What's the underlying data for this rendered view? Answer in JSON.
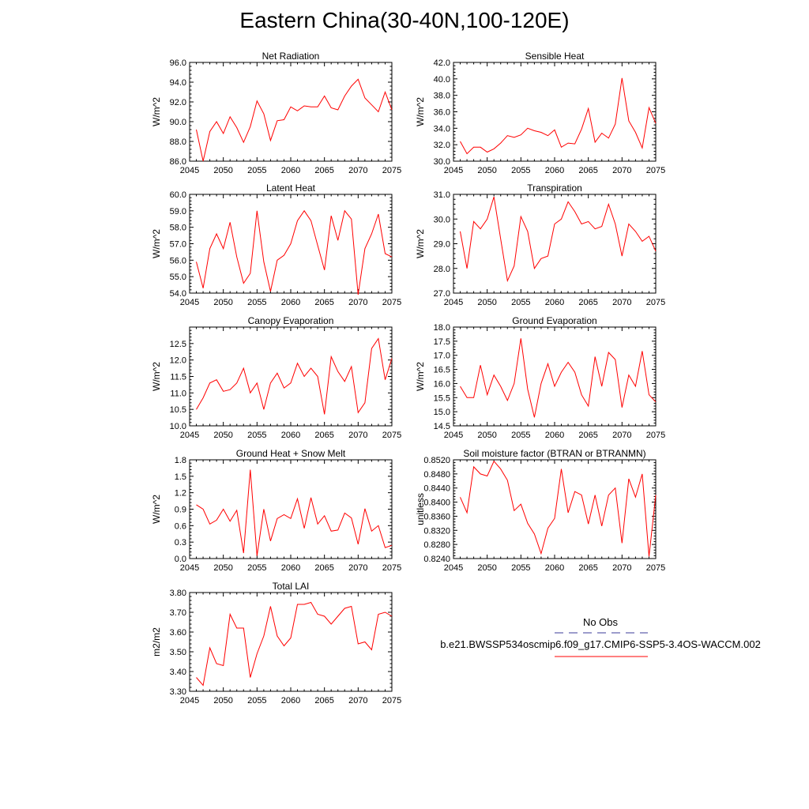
{
  "title": "Eastern China(30-40N,100-120E)",
  "legend": {
    "entries": [
      {
        "name": "No Obs",
        "color": "#3b3b9a",
        "dash": "dashed"
      },
      {
        "name": "b.e21.BWSSP534oscmip6.f09_g17.CMIP6-SSP5-3.4OS-WACCM.002",
        "color": "#ff0000",
        "dash": "solid"
      }
    ]
  },
  "chart_data": [
    {
      "type": "line",
      "title": "Net Radiation",
      "xlabel": "",
      "ylabel": "W/m^2",
      "xlim": [
        2045,
        2075
      ],
      "ylim": [
        86.0,
        96.0
      ],
      "xticks": [
        2045,
        2050,
        2055,
        2060,
        2065,
        2070,
        2075
      ],
      "yticks": [
        86.0,
        88.0,
        90.0,
        92.0,
        94.0,
        96.0
      ],
      "ytick_labels": [
        "86.0",
        "88.0",
        "90.0",
        "92.0",
        "94.0",
        "96.0"
      ],
      "x": [
        2046,
        2047,
        2048,
        2049,
        2050,
        2051,
        2052,
        2053,
        2054,
        2055,
        2056,
        2057,
        2058,
        2059,
        2060,
        2061,
        2062,
        2063,
        2064,
        2065,
        2066,
        2067,
        2068,
        2069,
        2070,
        2071,
        2072,
        2073,
        2074,
        2075
      ],
      "series": [
        {
          "color": "#ff0000",
          "values": [
            89.2,
            86.0,
            89.0,
            90.0,
            88.8,
            90.5,
            89.4,
            87.9,
            89.5,
            92.1,
            90.8,
            88.1,
            90.1,
            90.2,
            91.5,
            91.1,
            91.6,
            91.5,
            91.5,
            92.6,
            91.4,
            91.2,
            92.6,
            93.6,
            94.3,
            92.4,
            91.7,
            91.0,
            93.0,
            91.2
          ]
        }
      ]
    },
    {
      "type": "line",
      "title": "Sensible Heat",
      "xlabel": "",
      "ylabel": "W/m^2",
      "xlim": [
        2045,
        2075
      ],
      "ylim": [
        30.0,
        42.0
      ],
      "xticks": [
        2045,
        2050,
        2055,
        2060,
        2065,
        2070,
        2075
      ],
      "yticks": [
        30.0,
        32.0,
        34.0,
        36.0,
        38.0,
        40.0,
        42.0
      ],
      "ytick_labels": [
        "30.0",
        "32.0",
        "34.0",
        "36.0",
        "38.0",
        "40.0",
        "42.0"
      ],
      "x": [
        2046,
        2047,
        2048,
        2049,
        2050,
        2051,
        2052,
        2053,
        2054,
        2055,
        2056,
        2057,
        2058,
        2059,
        2060,
        2061,
        2062,
        2063,
        2064,
        2065,
        2066,
        2067,
        2068,
        2069,
        2070,
        2071,
        2072,
        2073,
        2074,
        2075
      ],
      "series": [
        {
          "color": "#ff0000",
          "values": [
            32.4,
            30.9,
            31.7,
            31.7,
            31.1,
            31.5,
            32.2,
            33.1,
            32.9,
            33.2,
            34.0,
            33.7,
            33.5,
            33.1,
            33.8,
            31.7,
            32.2,
            32.1,
            33.9,
            36.4,
            32.3,
            33.4,
            32.8,
            34.5,
            40.1,
            34.9,
            33.5,
            31.6,
            36.5,
            34.6
          ]
        }
      ]
    },
    {
      "type": "line",
      "title": "Latent Heat",
      "xlabel": "",
      "ylabel": "W/m^2",
      "xlim": [
        2045,
        2075
      ],
      "ylim": [
        54.0,
        60.0
      ],
      "xticks": [
        2045,
        2050,
        2055,
        2060,
        2065,
        2070,
        2075
      ],
      "yticks": [
        54.0,
        55.0,
        56.0,
        57.0,
        58.0,
        59.0,
        60.0
      ],
      "ytick_labels": [
        "54.0",
        "55.0",
        "56.0",
        "57.0",
        "58.0",
        "59.0",
        "60.0"
      ],
      "x": [
        2046,
        2047,
        2048,
        2049,
        2050,
        2051,
        2052,
        2053,
        2054,
        2055,
        2056,
        2057,
        2058,
        2059,
        2060,
        2061,
        2062,
        2063,
        2064,
        2065,
        2066,
        2067,
        2068,
        2069,
        2070,
        2071,
        2072,
        2073,
        2074,
        2075
      ],
      "series": [
        {
          "color": "#ff0000",
          "values": [
            55.9,
            54.3,
            56.7,
            57.6,
            56.7,
            58.3,
            56.2,
            54.6,
            55.2,
            59.0,
            55.9,
            54.1,
            56.0,
            56.3,
            57.0,
            58.4,
            59.0,
            58.4,
            56.9,
            55.4,
            58.7,
            57.2,
            59.0,
            58.5,
            53.9,
            56.7,
            57.6,
            58.8,
            56.4,
            56.2
          ]
        }
      ]
    },
    {
      "type": "line",
      "title": "Transpiration",
      "xlabel": "",
      "ylabel": "W/m^2",
      "xlim": [
        2045,
        2075
      ],
      "ylim": [
        27.0,
        31.0
      ],
      "xticks": [
        2045,
        2050,
        2055,
        2060,
        2065,
        2070,
        2075
      ],
      "yticks": [
        27.0,
        28.0,
        29.0,
        30.0,
        31.0
      ],
      "ytick_labels": [
        "27.0",
        "28.0",
        "29.0",
        "30.0",
        "31.0"
      ],
      "x": [
        2046,
        2047,
        2048,
        2049,
        2050,
        2051,
        2052,
        2053,
        2054,
        2055,
        2056,
        2057,
        2058,
        2059,
        2060,
        2061,
        2062,
        2063,
        2064,
        2065,
        2066,
        2067,
        2068,
        2069,
        2070,
        2071,
        2072,
        2073,
        2074,
        2075
      ],
      "series": [
        {
          "color": "#ff0000",
          "values": [
            29.5,
            28.0,
            29.9,
            29.6,
            30.0,
            30.9,
            29.2,
            27.5,
            28.1,
            30.1,
            29.5,
            28.0,
            28.4,
            28.5,
            29.8,
            30.0,
            30.7,
            30.3,
            29.8,
            29.9,
            29.6,
            29.7,
            30.6,
            29.8,
            28.5,
            29.8,
            29.5,
            29.1,
            29.3,
            28.7
          ]
        }
      ]
    },
    {
      "type": "line",
      "title": "Canopy Evaporation",
      "xlabel": "",
      "ylabel": "W/m^2",
      "xlim": [
        2045,
        2075
      ],
      "ylim": [
        10.0,
        13.0
      ],
      "xticks": [
        2045,
        2050,
        2055,
        2060,
        2065,
        2070,
        2075
      ],
      "yticks": [
        10.0,
        10.5,
        11.0,
        11.5,
        12.0,
        12.5
      ],
      "ytick_labels": [
        "10.0",
        "10.5",
        "11.0",
        "11.5",
        "12.0",
        "12.5"
      ],
      "x": [
        2046,
        2047,
        2048,
        2049,
        2050,
        2051,
        2052,
        2053,
        2054,
        2055,
        2056,
        2057,
        2058,
        2059,
        2060,
        2061,
        2062,
        2063,
        2064,
        2065,
        2066,
        2067,
        2068,
        2069,
        2070,
        2071,
        2072,
        2073,
        2074,
        2075
      ],
      "series": [
        {
          "color": "#ff0000",
          "values": [
            10.5,
            10.85,
            11.3,
            11.4,
            11.05,
            11.1,
            11.3,
            11.75,
            11.0,
            11.3,
            10.5,
            11.3,
            11.6,
            11.15,
            11.3,
            11.9,
            11.5,
            11.75,
            11.5,
            10.35,
            12.1,
            11.65,
            11.35,
            11.8,
            10.4,
            10.7,
            12.35,
            12.65,
            11.4,
            12.05
          ]
        }
      ]
    },
    {
      "type": "line",
      "title": "Ground Evaporation",
      "xlabel": "",
      "ylabel": "W/m^2",
      "xlim": [
        2045,
        2075
      ],
      "ylim": [
        14.5,
        18.0
      ],
      "xticks": [
        2045,
        2050,
        2055,
        2060,
        2065,
        2070,
        2075
      ],
      "yticks": [
        14.5,
        15.0,
        15.5,
        16.0,
        16.5,
        17.0,
        17.5,
        18.0
      ],
      "ytick_labels": [
        "14.5",
        "15.0",
        "15.5",
        "16.0",
        "16.5",
        "17.0",
        "17.5",
        "18.0"
      ],
      "x": [
        2046,
        2047,
        2048,
        2049,
        2050,
        2051,
        2052,
        2053,
        2054,
        2055,
        2056,
        2057,
        2058,
        2059,
        2060,
        2061,
        2062,
        2063,
        2064,
        2065,
        2066,
        2067,
        2068,
        2069,
        2070,
        2071,
        2072,
        2073,
        2074,
        2075
      ],
      "series": [
        {
          "color": "#ff0000",
          "values": [
            15.9,
            15.5,
            15.5,
            16.65,
            15.6,
            16.3,
            15.9,
            15.4,
            16.0,
            17.6,
            15.8,
            14.8,
            16.0,
            16.7,
            15.9,
            16.4,
            16.75,
            16.4,
            15.6,
            15.2,
            16.95,
            15.9,
            17.1,
            16.85,
            15.15,
            16.3,
            15.9,
            17.15,
            15.6,
            15.35
          ]
        }
      ]
    },
    {
      "type": "line",
      "title": "Ground Heat + Snow Melt",
      "xlabel": "",
      "ylabel": "W/m^2",
      "xlim": [
        2045,
        2075
      ],
      "ylim": [
        0.0,
        1.8
      ],
      "xticks": [
        2045,
        2050,
        2055,
        2060,
        2065,
        2070,
        2075
      ],
      "yticks": [
        0.0,
        0.3,
        0.6,
        0.9,
        1.2,
        1.5,
        1.8
      ],
      "ytick_labels": [
        "0.0",
        "0.3",
        "0.6",
        "0.9",
        "1.2",
        "1.5",
        "1.8"
      ],
      "x": [
        2046,
        2047,
        2048,
        2049,
        2050,
        2051,
        2052,
        2053,
        2054,
        2055,
        2056,
        2057,
        2058,
        2059,
        2060,
        2061,
        2062,
        2063,
        2064,
        2065,
        2066,
        2067,
        2068,
        2069,
        2070,
        2071,
        2072,
        2073,
        2074,
        2075
      ],
      "series": [
        {
          "color": "#ff0000",
          "values": [
            0.98,
            0.9,
            0.63,
            0.7,
            0.9,
            0.68,
            0.88,
            0.1,
            1.62,
            0.05,
            0.9,
            0.32,
            0.73,
            0.8,
            0.73,
            1.09,
            0.55,
            1.11,
            0.63,
            0.78,
            0.5,
            0.52,
            0.83,
            0.74,
            0.26,
            0.91,
            0.5,
            0.6,
            0.2,
            0.24
          ]
        }
      ]
    },
    {
      "type": "line",
      "title": "Soil moisture factor (BTRAN or BTRANMN)",
      "xlabel": "",
      "ylabel": "unitless",
      "xlim": [
        2045,
        2075
      ],
      "ylim": [
        0.824,
        0.852
      ],
      "xticks": [
        2045,
        2050,
        2055,
        2060,
        2065,
        2070,
        2075
      ],
      "yticks": [
        0.824,
        0.828,
        0.832,
        0.836,
        0.84,
        0.844,
        0.848,
        0.852
      ],
      "ytick_labels": [
        "0.8240",
        "0.8280",
        "0.8320",
        "0.8360",
        "0.8400",
        "0.8440",
        "0.8480",
        "0.8520"
      ],
      "x": [
        2046,
        2047,
        2048,
        2049,
        2050,
        2051,
        2052,
        2053,
        2054,
        2055,
        2056,
        2057,
        2058,
        2059,
        2060,
        2061,
        2062,
        2063,
        2064,
        2065,
        2066,
        2067,
        2068,
        2069,
        2070,
        2071,
        2072,
        2073,
        2074,
        2075
      ],
      "series": [
        {
          "color": "#ff0000",
          "values": [
            0.8414,
            0.837,
            0.85,
            0.848,
            0.8474,
            0.8516,
            0.8494,
            0.8462,
            0.8376,
            0.8394,
            0.834,
            0.831,
            0.8254,
            0.8326,
            0.8354,
            0.8494,
            0.837,
            0.843,
            0.842,
            0.8338,
            0.842,
            0.8332,
            0.842,
            0.844,
            0.8284,
            0.8466,
            0.8414,
            0.848,
            0.8246,
            0.842
          ]
        }
      ]
    },
    {
      "type": "line",
      "title": "Total LAI",
      "xlabel": "",
      "ylabel": "m2/m2",
      "xlim": [
        2045,
        2075
      ],
      "ylim": [
        3.3,
        3.8
      ],
      "xticks": [
        2045,
        2050,
        2055,
        2060,
        2065,
        2070,
        2075
      ],
      "yticks": [
        3.3,
        3.4,
        3.5,
        3.6,
        3.7,
        3.8
      ],
      "ytick_labels": [
        "3.30",
        "3.40",
        "3.50",
        "3.60",
        "3.70",
        "3.80"
      ],
      "x": [
        2046,
        2047,
        2048,
        2049,
        2050,
        2051,
        2052,
        2053,
        2054,
        2055,
        2056,
        2057,
        2058,
        2059,
        2060,
        2061,
        2062,
        2063,
        2064,
        2065,
        2066,
        2067,
        2068,
        2069,
        2070,
        2071,
        2072,
        2073,
        2074,
        2075
      ],
      "series": [
        {
          "color": "#ff0000",
          "values": [
            3.37,
            3.33,
            3.52,
            3.44,
            3.43,
            3.69,
            3.62,
            3.62,
            3.37,
            3.49,
            3.58,
            3.73,
            3.58,
            3.53,
            3.57,
            3.74,
            3.74,
            3.75,
            3.69,
            3.68,
            3.64,
            3.68,
            3.72,
            3.73,
            3.54,
            3.55,
            3.51,
            3.69,
            3.7,
            3.68
          ]
        }
      ]
    }
  ]
}
